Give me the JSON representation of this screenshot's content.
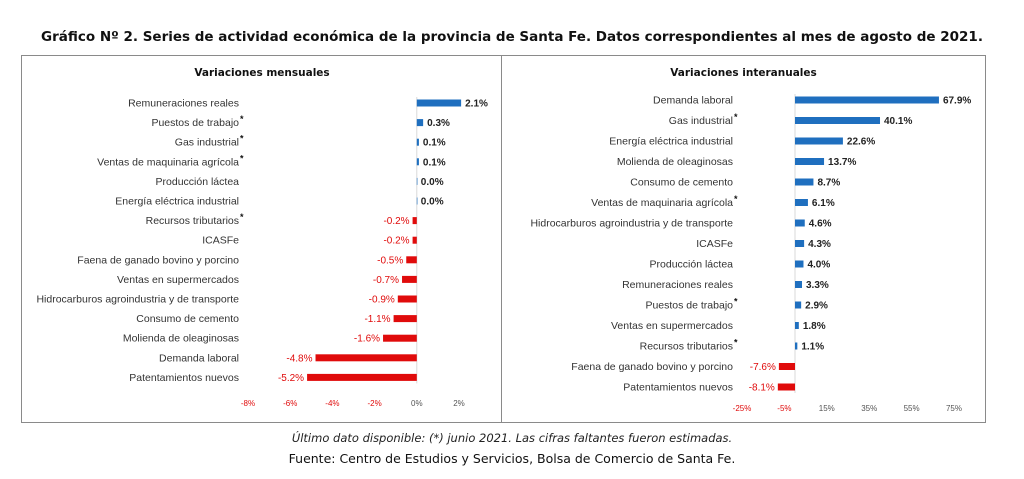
{
  "title": "Gráfico Nº 2. Series de actividad económica de la provincia de Santa Fe. Datos correspondientes al mes de agosto de 2021.",
  "footnote": "Último dato disponible: (*) junio 2021. Las cifras faltantes fueron estimadas.",
  "source": "Fuente: Centro de Estudios y Servicios, Bolsa de Comercio de Santa Fe.",
  "colors": {
    "positive": "#1f6fbf",
    "negative": "#e00b0b",
    "axis_text_negative": "#e00b0b",
    "axis_text_positive": "#555555"
  },
  "chart_data": [
    {
      "type": "bar",
      "orientation": "horizontal",
      "title": "Variaciones mensuales",
      "categories": [
        "Remuneraciones reales",
        "Puestos de trabajo",
        "Gas industrial",
        "Ventas de maquinaria agrícola",
        "Producción láctea",
        "Energía eléctrica industrial",
        "Recursos tributarios",
        "ICASFe",
        "Faena de ganado bovino y porcino",
        "Ventas en supermercados",
        "Hidrocarburos agroindustria y de transporte",
        "Consumo de cemento",
        "Molienda de oleaginosas",
        "Demanda laboral",
        "Patentamientos nuevos"
      ],
      "asterisk": [
        false,
        true,
        true,
        true,
        false,
        false,
        true,
        false,
        false,
        false,
        false,
        false,
        false,
        false,
        false
      ],
      "values": [
        2.1,
        0.3,
        0.1,
        0.1,
        0.0,
        0.0,
        -0.2,
        -0.2,
        -0.5,
        -0.7,
        -0.9,
        -1.1,
        -1.6,
        -4.8,
        -5.2
      ],
      "labels": [
        "2.1%",
        "0.3%",
        "0.1%",
        "0.1%",
        "0.0%",
        "0.0%",
        "-0.2%",
        "-0.2%",
        "-0.5%",
        "-0.7%",
        "-0.9%",
        "-1.1%",
        "-1.6%",
        "-4.8%",
        "-5.2%"
      ],
      "xlim": [
        -8,
        2
      ],
      "ticks": [
        -8,
        -6,
        -4,
        -2,
        0,
        2
      ],
      "tick_labels": [
        "-8%",
        "-6%",
        "-4%",
        "-2%",
        "0%",
        "2%"
      ],
      "grid": false
    },
    {
      "type": "bar",
      "orientation": "horizontal",
      "title": "Variaciones interanuales",
      "categories": [
        "Demanda laboral",
        "Gas industrial",
        "Energía eléctrica industrial",
        "Molienda de oleaginosas",
        "Consumo de cemento",
        "Ventas de maquinaria agrícola",
        "Hidrocarburos agroindustria y de transporte",
        "ICASFe",
        "Producción láctea",
        "Remuneraciones reales",
        "Puestos de trabajo",
        "Ventas en supermercados",
        "Recursos tributarios",
        "Faena de ganado bovino y porcino",
        "Patentamientos nuevos"
      ],
      "asterisk": [
        false,
        true,
        false,
        false,
        false,
        true,
        false,
        false,
        false,
        false,
        true,
        false,
        true,
        false,
        false
      ],
      "values": [
        67.9,
        40.1,
        22.6,
        13.7,
        8.7,
        6.1,
        4.6,
        4.3,
        4.0,
        3.3,
        2.9,
        1.8,
        1.1,
        -7.6,
        -8.1
      ],
      "labels": [
        "67.9%",
        "40.1%",
        "22.6%",
        "13.7%",
        "8.7%",
        "6.1%",
        "4.6%",
        "4.3%",
        "4.0%",
        "3.3%",
        "2.9%",
        "1.8%",
        "1.1%",
        "-7.6%",
        "-8.1%"
      ],
      "xlim": [
        -25,
        75
      ],
      "ticks": [
        -25,
        -5,
        15,
        35,
        55,
        75
      ],
      "tick_labels": [
        "-25%",
        "-5%",
        "15%",
        "35%",
        "55%",
        "75%"
      ],
      "grid": false
    }
  ]
}
